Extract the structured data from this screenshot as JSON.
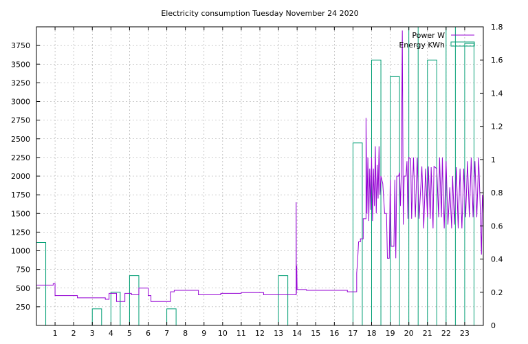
{
  "chart_data": {
    "type": "bar",
    "title": "Electricity consumption Tuesday November 24 2020",
    "xlabel": "",
    "ylabel": "",
    "y2label": "",
    "grid": true,
    "legend_position": "top-right",
    "xlim": [
      0,
      24
    ],
    "ylim": [
      0,
      4000
    ],
    "y2lim": [
      0,
      1.8
    ],
    "x_ticks": [
      1,
      2,
      3,
      4,
      5,
      6,
      7,
      8,
      9,
      10,
      11,
      12,
      13,
      14,
      15,
      16,
      17,
      18,
      19,
      20,
      21,
      22,
      23
    ],
    "y_ticks": [
      250,
      500,
      750,
      1000,
      1250,
      1500,
      1750,
      2000,
      2250,
      2500,
      2750,
      3000,
      3250,
      3500,
      3750
    ],
    "y2_ticks": [
      0,
      0.2,
      0.4,
      0.6,
      0.8,
      1,
      1.2,
      1.4,
      1.6,
      1.8
    ],
    "y2_tick_labels": [
      "0",
      "0.2",
      "0.4",
      "0.6",
      "0.8",
      "1",
      "1.2",
      "1.4",
      "1.6",
      "1.8"
    ],
    "series": [
      {
        "name": "Power W",
        "type": "line",
        "axis": "y",
        "color": "#9400d3",
        "points": [
          [
            0,
            540
          ],
          [
            0.9,
            540
          ],
          [
            0.9,
            560
          ],
          [
            1.0,
            560
          ],
          [
            1.0,
            400
          ],
          [
            2.2,
            400
          ],
          [
            2.2,
            370
          ],
          [
            3.7,
            370
          ],
          [
            3.7,
            350
          ],
          [
            3.9,
            350
          ],
          [
            3.9,
            430
          ],
          [
            4.3,
            430
          ],
          [
            4.3,
            320
          ],
          [
            4.75,
            320
          ],
          [
            4.75,
            430
          ],
          [
            5.1,
            430
          ],
          [
            5.1,
            410
          ],
          [
            5.5,
            410
          ],
          [
            5.5,
            500
          ],
          [
            6.0,
            500
          ],
          [
            6.0,
            400
          ],
          [
            6.15,
            400
          ],
          [
            6.15,
            320
          ],
          [
            7.2,
            320
          ],
          [
            7.2,
            450
          ],
          [
            7.4,
            450
          ],
          [
            7.4,
            470
          ],
          [
            8.7,
            470
          ],
          [
            8.7,
            410
          ],
          [
            9.9,
            410
          ],
          [
            9.9,
            430
          ],
          [
            11.0,
            430
          ],
          [
            11.0,
            440
          ],
          [
            12.2,
            440
          ],
          [
            12.2,
            410
          ],
          [
            13.95,
            410
          ],
          [
            13.95,
            1650
          ],
          [
            13.96,
            420
          ],
          [
            13.98,
            800
          ],
          [
            14.0,
            480
          ],
          [
            14.5,
            480
          ],
          [
            14.5,
            470
          ],
          [
            16.7,
            470
          ],
          [
            16.7,
            450
          ],
          [
            17.2,
            450
          ],
          [
            17.2,
            700
          ],
          [
            17.25,
            870
          ],
          [
            17.3,
            1120
          ],
          [
            17.4,
            1120
          ],
          [
            17.4,
            1160
          ],
          [
            17.55,
            1160
          ],
          [
            17.55,
            1430
          ],
          [
            17.7,
            1430
          ],
          [
            17.7,
            2780
          ],
          [
            17.75,
            1500
          ],
          [
            17.8,
            2250
          ],
          [
            17.85,
            1400
          ],
          [
            17.9,
            2100
          ],
          [
            17.95,
            1550
          ],
          [
            18.0,
            2250
          ],
          [
            18.05,
            1400
          ],
          [
            18.1,
            2100
          ],
          [
            18.15,
            1600
          ],
          [
            18.2,
            2400
          ],
          [
            18.25,
            1500
          ],
          [
            18.3,
            2150
          ],
          [
            18.35,
            1700
          ],
          [
            18.4,
            2400
          ],
          [
            18.45,
            1750
          ],
          [
            18.5,
            2000
          ],
          [
            18.6,
            1900
          ],
          [
            18.7,
            1500
          ],
          [
            18.8,
            1500
          ],
          [
            18.85,
            900
          ],
          [
            18.95,
            900
          ],
          [
            19.0,
            1950
          ],
          [
            19.05,
            1060
          ],
          [
            19.2,
            1060
          ],
          [
            19.25,
            1950
          ],
          [
            19.3,
            900
          ],
          [
            19.35,
            2000
          ],
          [
            19.45,
            2000
          ],
          [
            19.5,
            2050
          ],
          [
            19.55,
            1600
          ],
          [
            19.6,
            2100
          ],
          [
            19.65,
            3950
          ],
          [
            19.7,
            1350
          ],
          [
            19.75,
            2000
          ],
          [
            19.85,
            2000
          ],
          [
            19.9,
            2200
          ],
          [
            19.95,
            1430
          ],
          [
            20.0,
            2250
          ],
          [
            20.1,
            2230
          ],
          [
            20.15,
            1430
          ],
          [
            20.25,
            2250
          ],
          [
            20.35,
            1450
          ],
          [
            20.45,
            2250
          ],
          [
            20.55,
            1430
          ],
          [
            20.7,
            2130
          ],
          [
            20.8,
            1300
          ],
          [
            20.9,
            2100
          ],
          [
            21.0,
            1450
          ],
          [
            21.05,
            2130
          ],
          [
            21.15,
            1430
          ],
          [
            21.2,
            2120
          ],
          [
            21.3,
            1300
          ],
          [
            21.35,
            2130
          ],
          [
            21.5,
            2100
          ],
          [
            21.6,
            1450
          ],
          [
            21.65,
            2250
          ],
          [
            21.75,
            1450
          ],
          [
            21.8,
            2250
          ],
          [
            21.9,
            1300
          ],
          [
            22.0,
            2200
          ],
          [
            22.1,
            1350
          ],
          [
            22.2,
            1850
          ],
          [
            22.3,
            1300
          ],
          [
            22.35,
            2000
          ],
          [
            22.45,
            1350
          ],
          [
            22.55,
            2120
          ],
          [
            22.65,
            1300
          ],
          [
            22.75,
            2100
          ],
          [
            22.85,
            1300
          ],
          [
            22.95,
            2100
          ],
          [
            23.05,
            1450
          ],
          [
            23.15,
            2200
          ],
          [
            23.25,
            1450
          ],
          [
            23.35,
            2250
          ],
          [
            23.45,
            1450
          ],
          [
            23.55,
            2200
          ],
          [
            23.65,
            1450
          ],
          [
            23.75,
            2250
          ],
          [
            23.85,
            1450
          ],
          [
            23.9,
            950
          ],
          [
            23.95,
            1750
          ],
          [
            24.0,
            1500
          ]
        ]
      },
      {
        "name": "Energy KWh",
        "type": "bar",
        "axis": "y2",
        "color": "#009e73",
        "bars": [
          {
            "hour": 0,
            "value": 0.5
          },
          {
            "hour": 1,
            "value": 0
          },
          {
            "hour": 2,
            "value": 0
          },
          {
            "hour": 3,
            "value": 0.1
          },
          {
            "hour": 4,
            "value": 0.2
          },
          {
            "hour": 5,
            "value": 0.3
          },
          {
            "hour": 6,
            "value": 0
          },
          {
            "hour": 7,
            "value": 0.1
          },
          {
            "hour": 8,
            "value": 0
          },
          {
            "hour": 9,
            "value": 0
          },
          {
            "hour": 10,
            "value": 0
          },
          {
            "hour": 11,
            "value": 0
          },
          {
            "hour": 12,
            "value": 0
          },
          {
            "hour": 13,
            "value": 0.3
          },
          {
            "hour": 14,
            "value": 0
          },
          {
            "hour": 15,
            "value": 0
          },
          {
            "hour": 16,
            "value": 0
          },
          {
            "hour": 17,
            "value": 1.1
          },
          {
            "hour": 18,
            "value": 1.6
          },
          {
            "hour": 19,
            "value": 1.5
          },
          {
            "hour": 20,
            "value": 1.8
          },
          {
            "hour": 21,
            "value": 1.6
          },
          {
            "hour": 22,
            "value": 1.8
          },
          {
            "hour": 23,
            "value": 1.7
          }
        ]
      }
    ]
  }
}
